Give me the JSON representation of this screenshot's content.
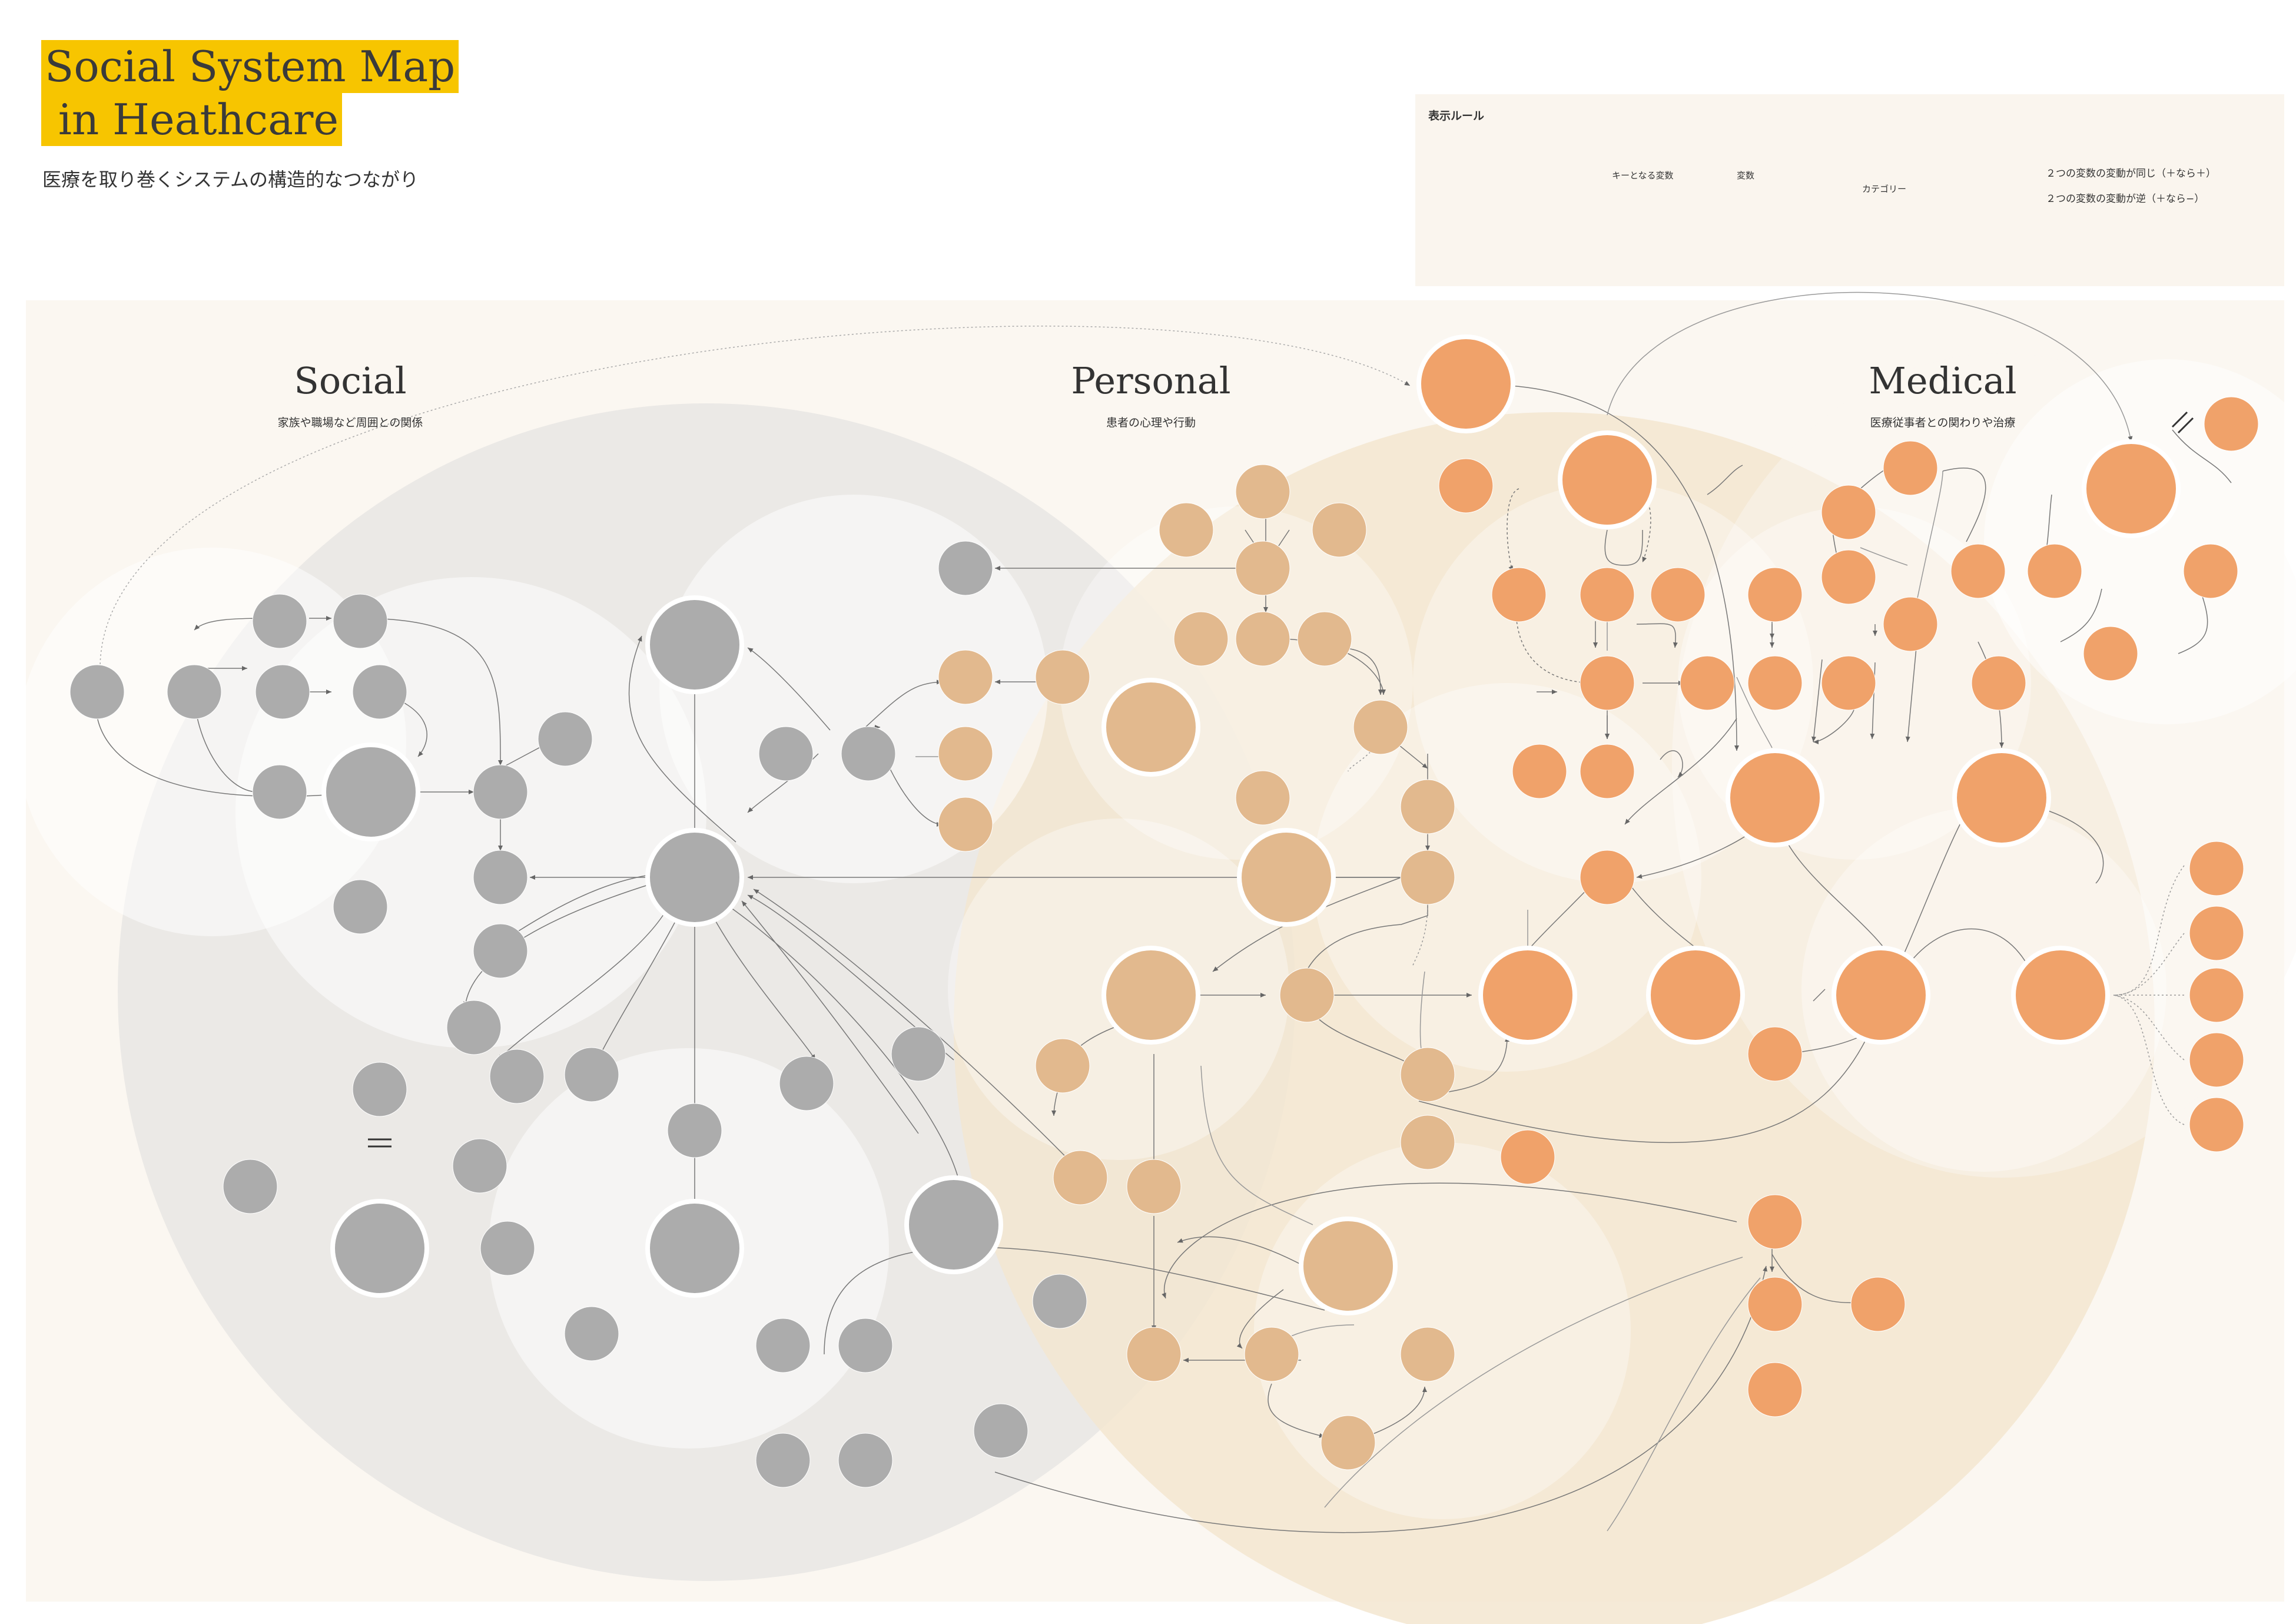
{
  "header": {
    "title_line1": "Social System Map",
    "title_line2": " in Heathcare",
    "subtitle": "医療を取り巻くシステムの構造的なつながり"
  },
  "legend": {
    "title": "表示ルール",
    "key_variable": "キーとなる変数",
    "variable": "変数",
    "category": "カテゴリー",
    "same_direction": "２つの変数の変動が同じ（＋なら＋）",
    "opposite_direction": "２つの変数の変動が逆（＋なら−）"
  },
  "sections": {
    "social": {
      "title": "Social",
      "subtitle": "家族や職場など周囲との関係"
    },
    "personal": {
      "title": "Personal",
      "subtitle": "患者の心理や行動"
    },
    "medical": {
      "title": "Medical",
      "subtitle": "医療従事者との関わりや治療"
    }
  },
  "colors": {
    "social_node": "#acacac",
    "personal_node": "#e2b98e",
    "medical_node": "#f0a26a",
    "social_region": "#ebe9e6",
    "personal_region": "#f3e6d0",
    "category_circle": "#ffffff"
  }
}
